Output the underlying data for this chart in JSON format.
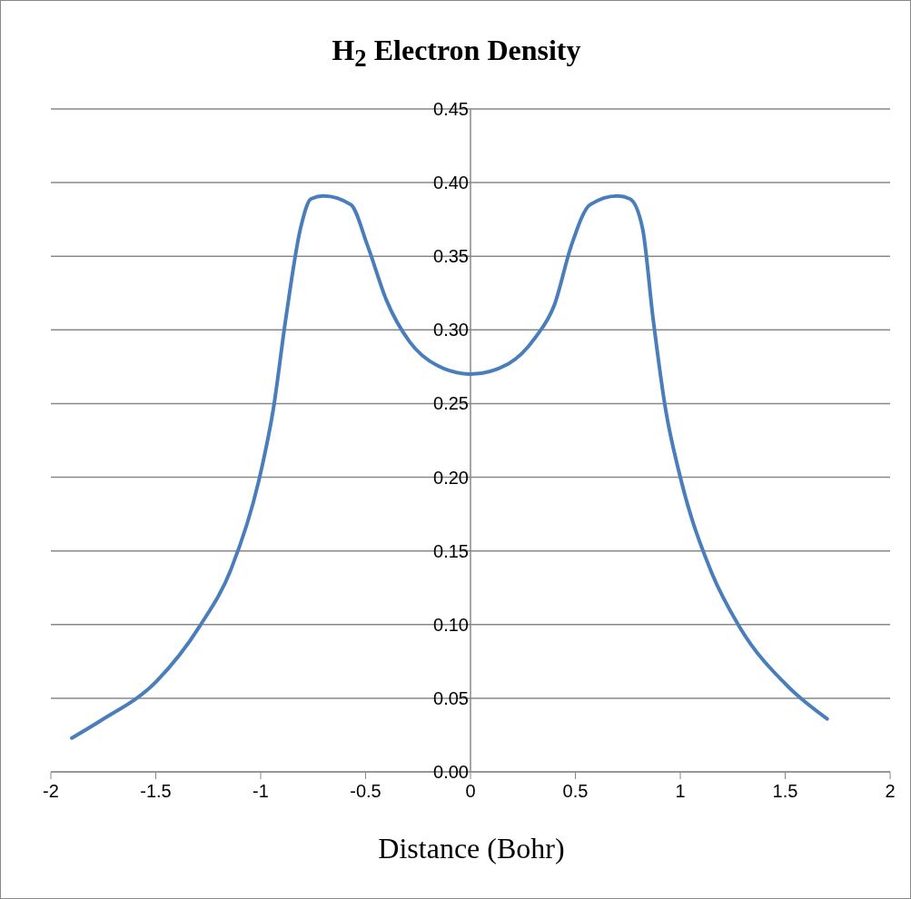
{
  "chart_data": {
    "type": "line",
    "title": "H$_{2}$ Electron Density",
    "xlabel": "Distance (Bohr)",
    "x": [
      -1.9,
      -1.76,
      -1.5,
      -1.29,
      -1.14,
      -1.01,
      -0.94,
      -0.88,
      -0.81,
      -0.76,
      -0.7,
      -0.57,
      -0.49,
      -0.4,
      -0.29,
      -0.16,
      0,
      0.18,
      0.31,
      0.4,
      0.48,
      0.57,
      0.7,
      0.76,
      0.82,
      0.87,
      0.93,
      1.0,
      1.15,
      1.28,
      1.52,
      1.7
    ],
    "series": [
      {
        "color": "#4a7ebb",
        "values": [
          0.023,
          0.035,
          0.061,
          0.099,
          0.138,
          0.197,
          0.246,
          0.308,
          0.369,
          0.389,
          0.391,
          0.385,
          0.357,
          0.32,
          0.292,
          0.276,
          0.27,
          0.277,
          0.295,
          0.317,
          0.357,
          0.385,
          0.391,
          0.389,
          0.369,
          0.308,
          0.246,
          0.2,
          0.135,
          0.099,
          0.057,
          0.036
        ]
      }
    ],
    "xlim": [
      -2,
      2
    ],
    "xticks": [
      -2,
      -1.5,
      -1,
      -0.5,
      0,
      0.5,
      1,
      1.5,
      2
    ],
    "ylim": [
      0,
      0.45
    ],
    "yticks": [
      {
        "value": 0,
        "label": "0.00"
      },
      {
        "value": 0.05,
        "label": "0.05"
      },
      {
        "value": 0.1,
        "label": "0.10"
      },
      {
        "value": 0.15,
        "label": "0.15"
      },
      {
        "value": 0.2,
        "label": "0.20"
      },
      {
        "value": 0.25,
        "label": "0.25"
      },
      {
        "value": 0.3,
        "label": "0.30"
      },
      {
        "value": 0.35,
        "label": "0.35"
      },
      {
        "value": 0.4,
        "label": "0.40"
      },
      {
        "value": 0.45,
        "label": "0.45"
      }
    ],
    "grid": "y",
    "legend": false,
    "marker": "none",
    "line_style": "solid"
  }
}
